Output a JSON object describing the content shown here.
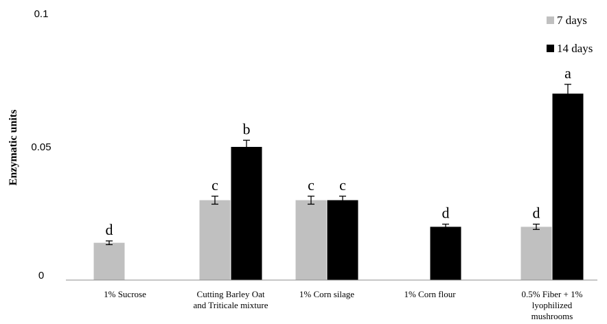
{
  "chart_data": {
    "type": "bar",
    "ylabel": "Enzymatic units",
    "xlabel": "",
    "ylim": [
      0,
      0.1
    ],
    "yticks": [
      {
        "value": 0,
        "label": "0"
      },
      {
        "value": 0.05,
        "label": "0.05"
      },
      {
        "value": 0.1,
        "label": "0.1"
      }
    ],
    "grid": false,
    "legend_position": "top-right",
    "categories": [
      [
        "1% Sucrose"
      ],
      [
        "Cutting Barley Oat",
        "and Triticale mixture"
      ],
      [
        "1% Corn silage"
      ],
      [
        "1% Corn flour"
      ],
      [
        "0.5% Fiber + 1%",
        "lyophilized",
        "mushrooms"
      ]
    ],
    "series": [
      {
        "name": "7 days",
        "color": "#c0c0c0",
        "values": [
          0.014,
          0.03,
          0.03,
          null,
          0.02
        ],
        "errors": [
          0.0007,
          0.0015,
          0.0015,
          null,
          0.001
        ],
        "letters": [
          "d",
          "c",
          "c",
          null,
          "d"
        ]
      },
      {
        "name": "14 days",
        "color": "#000000",
        "values": [
          null,
          0.05,
          0.03,
          0.02,
          0.07
        ],
        "errors": [
          null,
          0.0025,
          0.0015,
          0.001,
          0.0035
        ],
        "letters": [
          null,
          "b",
          "c",
          "d",
          "a"
        ]
      }
    ]
  }
}
